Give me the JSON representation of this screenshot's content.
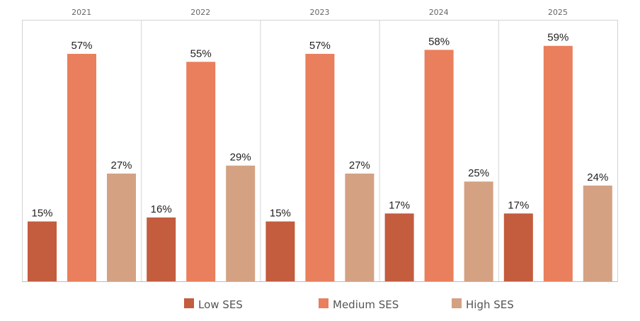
{
  "chart_data": {
    "type": "bar",
    "categories": [
      "2021",
      "2022",
      "2023",
      "2024",
      "2025"
    ],
    "series": [
      {
        "name": "Low SES",
        "color": "#c45c3e",
        "values": [
          15,
          16,
          15,
          17,
          17
        ]
      },
      {
        "name": "Medium SES",
        "color": "#e97f5c",
        "values": [
          57,
          55,
          57,
          58,
          59
        ]
      },
      {
        "name": "High SES",
        "color": "#d4a183",
        "values": [
          27,
          29,
          27,
          25,
          24
        ]
      }
    ],
    "value_suffix": "%",
    "ylim": [
      0,
      65
    ],
    "grid": false,
    "legend_position": "bottom"
  }
}
